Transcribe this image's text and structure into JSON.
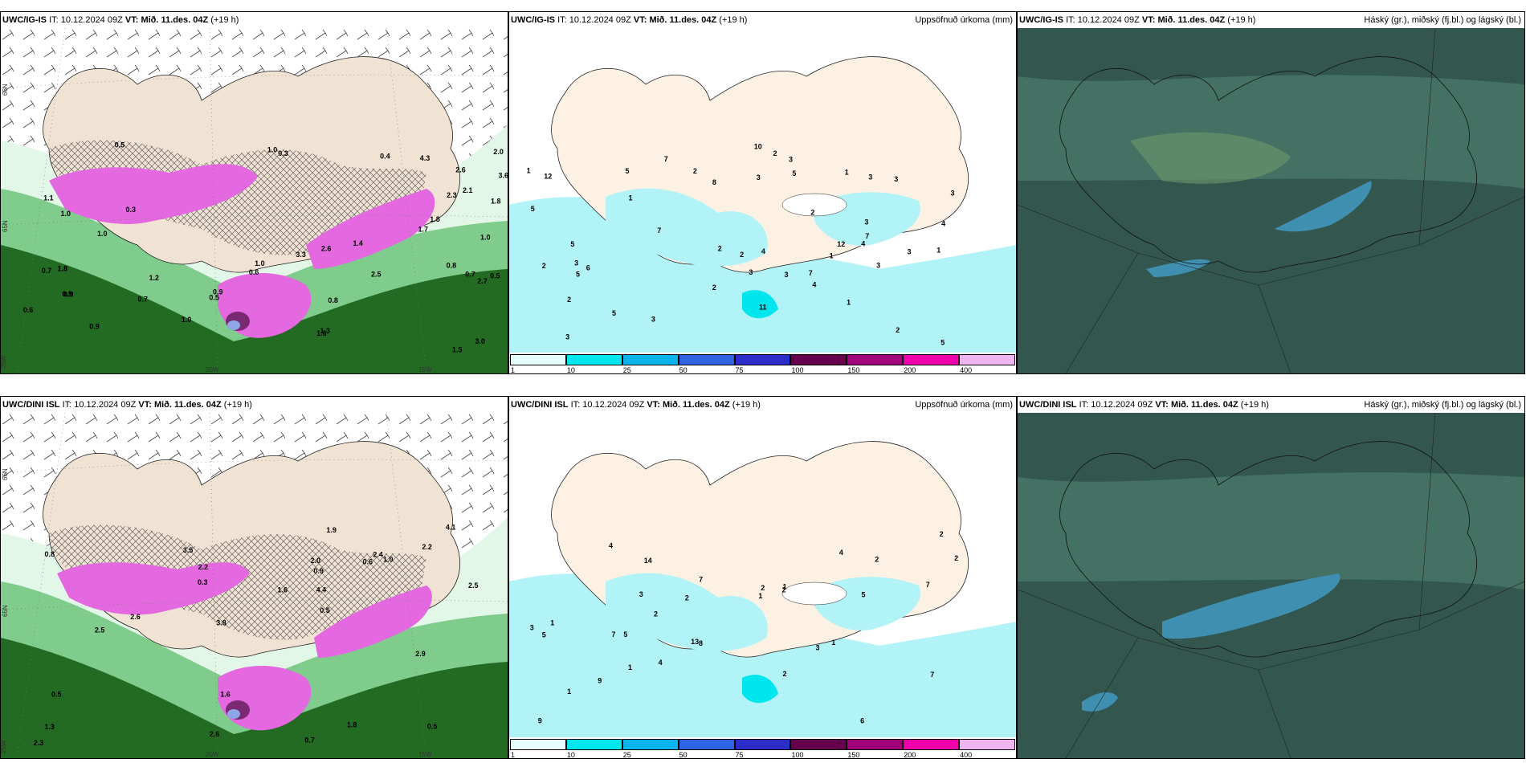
{
  "panels": {
    "top_left": {
      "model": "UWC/IG-IS",
      "it_label": "IT:",
      "it_value": "10.12.2024 09Z",
      "vt_label": "VT:",
      "vt_value": "Mið. 11.des. 04Z",
      "lead": "(+19 h)",
      "right_title": ""
    },
    "top_mid": {
      "model": "UWC/IG-IS",
      "it_label": "IT:",
      "it_value": "10.12.2024 09Z",
      "vt_label": "VT:",
      "vt_value": "Mið. 11.des. 04Z",
      "lead": "(+19 h)",
      "right_title": "Uppsöfnuð úrkoma (mm)"
    },
    "top_right": {
      "model": "UWC/IG-IS",
      "it_label": "IT:",
      "it_value": "10.12.2024 09Z",
      "vt_label": "VT:",
      "vt_value": "Mið. 11.des. 04Z",
      "lead": "(+19 h)",
      "right_title": "Háský (gr.), miðský (fj.bl.) og lágský (bl.)"
    },
    "bottom_left": {
      "model": "UWC/DINI ISL",
      "it_label": "IT:",
      "it_value": "10.12.2024 09Z",
      "vt_label": "VT:",
      "vt_value": "Mið. 11.des. 04Z",
      "lead": "(+19 h)",
      "right_title": ""
    },
    "bottom_mid": {
      "model": "UWC/DINI ISL",
      "it_label": "IT:",
      "it_value": "10.12.2024 09Z",
      "vt_label": "VT:",
      "vt_value": "Mið. 11.des. 04Z",
      "lead": "(+19 h)",
      "right_title": "Uppsöfnuð úrkoma (mm)"
    },
    "bottom_right": {
      "model": "UWC/DINI ISL",
      "it_label": "IT:",
      "it_value": "10.12.2024 09Z",
      "vt_label": "VT:",
      "vt_value": "Mið. 11.des. 04Z",
      "lead": "(+19 h)",
      "right_title": "Háský (gr.), miðský (fj.bl.) og lágský (bl.)"
    }
  },
  "axis_labels": {
    "lat_66": "66N",
    "lat_65": "65N",
    "lon_25": "25W",
    "lon_20": "20W",
    "lon_15": "15W"
  },
  "colorbar": {
    "ticks": [
      "1",
      "10",
      "25",
      "50",
      "75",
      "100",
      "150",
      "200",
      "400"
    ],
    "colors": [
      "#e6ffff",
      "#00e6ee",
      "#0ab4ee",
      "#2d64e1",
      "#2c2cc8",
      "#66004c",
      "#a0007a",
      "#ee00aa",
      "#f0b4f0"
    ]
  },
  "colors": {
    "land": "#f1e3d3",
    "sea": "#ffffff",
    "precip_light": "#b2f3f7",
    "precip_mid": "#58ddee",
    "snow_light": "#e3f7e8",
    "snow_mid": "#7fcc8c",
    "snow_dark": "#236a23",
    "magenta": "#e468e0",
    "purple": "#7a2a72",
    "cloud_dark": "#33574f",
    "cloud_mid": "#4b7a6a",
    "cloud_blue": "#3e8fb0"
  },
  "precip_labels": {
    "top": [
      "2",
      "2",
      "3",
      "1",
      "1",
      "3",
      "4",
      "3",
      "2",
      "3",
      "5",
      "4",
      "3",
      "3",
      "2",
      "1",
      "3",
      "3",
      "2",
      "1",
      "2",
      "2",
      "3",
      "3",
      "4",
      "7",
      "5",
      "6",
      "8",
      "5",
      "5",
      "5",
      "5",
      "7",
      "4",
      "10",
      "11",
      "12",
      "12",
      "7",
      "7",
      "5",
      "3",
      "3",
      "1",
      "2",
      "2",
      "1",
      "3"
    ],
    "bottom": [
      "2",
      "2",
      "3",
      "1",
      "1",
      "2",
      "2",
      "1",
      "2",
      "4",
      "4",
      "3",
      "3",
      "5",
      "5",
      "5",
      "9",
      "9",
      "4",
      "7",
      "6",
      "8",
      "14",
      "7",
      "7",
      "13",
      "2",
      "1",
      "2",
      "7",
      "1",
      "1",
      "2"
    ]
  },
  "left_labels": {
    "top": [
      "0.3",
      "0.9",
      "1.1",
      "1.0",
      "0.7",
      "1.0",
      "1.5",
      "1.2",
      "0.9",
      "0.5",
      "1.0",
      "0.6",
      "2.6",
      "1.8",
      "0.8",
      "0.6",
      "0.5",
      "0.7",
      "0.9",
      "1.8",
      "2.6",
      "4.3",
      "3.0",
      "2.5",
      "3.6",
      "3.3",
      "2.3",
      "2.1",
      "1.8",
      "1.4",
      "2.7",
      "1.7",
      "1.0",
      "0.9",
      "1.0",
      "1.6",
      "0.8",
      "0.7",
      "0.5",
      "2.0",
      "1.3",
      "1.0",
      "0.4",
      "0.3"
    ],
    "bottom": [
      "0.7",
      "0.3",
      "2.5",
      "4.1",
      "1.3",
      "0.9",
      "0.6",
      "0.5",
      "0.8",
      "1.6",
      "1.0",
      "0.5",
      "3.5",
      "3.8",
      "4.4",
      "2.9",
      "2.6",
      "2.2",
      "2.5",
      "2.3",
      "2.6",
      "2.4",
      "1.8",
      "1.6",
      "0.5",
      "1.9",
      "2.0",
      "2.2"
    ]
  }
}
